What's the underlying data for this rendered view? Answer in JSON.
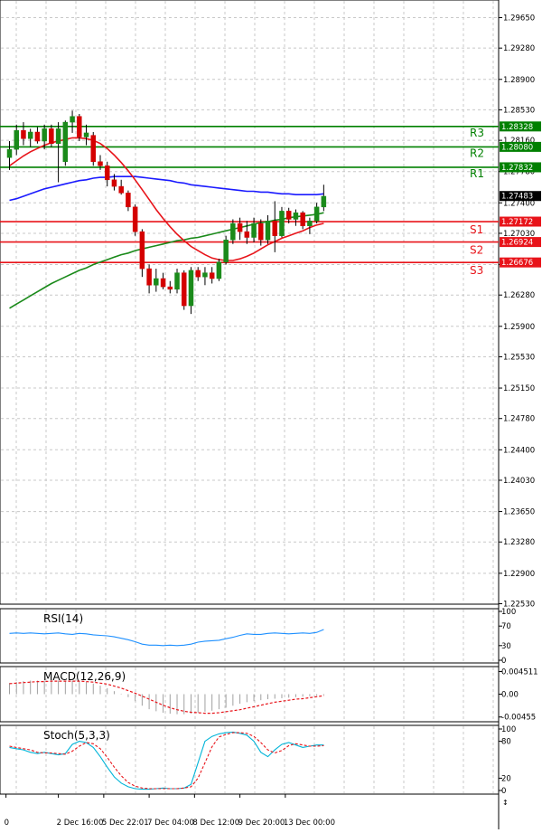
{
  "chart_data": [
    {
      "type": "candlestick",
      "title": "",
      "y_ticks": [
        "1.29650",
        "1.29280",
        "1.28900",
        "1.28530",
        "1.28160",
        "1.27780",
        "1.27400",
        "1.27030",
        "1.26650",
        "1.26280",
        "1.25900",
        "1.25530",
        "1.25150",
        "1.24780",
        "1.24400",
        "1.24030",
        "1.23650",
        "1.23280",
        "1.22900",
        "1.22530"
      ],
      "ylim": [
        1.2245,
        1.2985
      ],
      "current_price": {
        "label": "1.27483",
        "value": 1.27483
      },
      "pivot_levels": [
        {
          "name": "R3",
          "value": 1.28328,
          "label": "1.28328",
          "color": "#008000"
        },
        {
          "name": "R2",
          "value": 1.2808,
          "label": "1.28080",
          "color": "#008000"
        },
        {
          "name": "R1",
          "value": 1.27832,
          "label": "1.27832",
          "color": "#008000"
        },
        {
          "name": "S1",
          "value": 1.27172,
          "label": "1.27172",
          "color": "#e8141a"
        },
        {
          "name": "S2",
          "value": 1.26924,
          "label": "1.26924",
          "color": "#e8141a"
        },
        {
          "name": "S3",
          "value": 1.26676,
          "label": "1.26676",
          "color": "#e8141a"
        }
      ],
      "ohlc": [
        [
          1.2795,
          1.2815,
          1.278,
          1.2805
        ],
        [
          1.2805,
          1.2835,
          1.2798,
          1.2828
        ],
        [
          1.2828,
          1.2838,
          1.281,
          1.2818
        ],
        [
          1.2818,
          1.283,
          1.2808,
          1.2826
        ],
        [
          1.2826,
          1.2832,
          1.2812,
          1.2815
        ],
        [
          1.2815,
          1.2835,
          1.2805,
          1.283
        ],
        [
          1.283,
          1.2835,
          1.2808,
          1.2812
        ],
        [
          1.2812,
          1.2838,
          1.2765,
          1.283
        ],
        [
          1.279,
          1.284,
          1.2785,
          1.2838
        ],
        [
          1.2838,
          1.2852,
          1.2825,
          1.2845
        ],
        [
          1.2845,
          1.2848,
          1.2815,
          1.282
        ],
        [
          1.282,
          1.2835,
          1.281,
          1.2825
        ],
        [
          1.2822,
          1.2826,
          1.2785,
          1.279
        ],
        [
          1.279,
          1.2798,
          1.278,
          1.2785
        ],
        [
          1.2785,
          1.279,
          1.276,
          1.2768
        ],
        [
          1.2768,
          1.2775,
          1.2755,
          1.276
        ],
        [
          1.276,
          1.2768,
          1.275,
          1.2752
        ],
        [
          1.2752,
          1.2755,
          1.273,
          1.2735
        ],
        [
          1.2735,
          1.2738,
          1.27,
          1.2705
        ],
        [
          1.2705,
          1.2708,
          1.265,
          1.266
        ],
        [
          1.266,
          1.2665,
          1.263,
          1.264
        ],
        [
          1.264,
          1.266,
          1.2632,
          1.2648
        ],
        [
          1.2648,
          1.2655,
          1.2635,
          1.2638
        ],
        [
          1.2638,
          1.2645,
          1.263,
          1.2635
        ],
        [
          1.2635,
          1.266,
          1.263,
          1.2655
        ],
        [
          1.2655,
          1.2658,
          1.261,
          1.2615
        ],
        [
          1.2615,
          1.2662,
          1.2605,
          1.2658
        ],
        [
          1.2658,
          1.2662,
          1.2645,
          1.265
        ],
        [
          1.265,
          1.2662,
          1.264,
          1.2655
        ],
        [
          1.2655,
          1.2662,
          1.2642,
          1.2648
        ],
        [
          1.2648,
          1.2672,
          1.2645,
          1.2668
        ],
        [
          1.2668,
          1.27,
          1.2665,
          1.2695
        ],
        [
          1.2695,
          1.272,
          1.269,
          1.2715
        ],
        [
          1.2715,
          1.2722,
          1.2695,
          1.2705
        ],
        [
          1.2705,
          1.2718,
          1.269,
          1.2698
        ],
        [
          1.2698,
          1.2722,
          1.2692,
          1.2715
        ],
        [
          1.2715,
          1.272,
          1.2688,
          1.2695
        ],
        [
          1.2695,
          1.2725,
          1.269,
          1.2718
        ],
        [
          1.2718,
          1.2742,
          1.268,
          1.27
        ],
        [
          1.27,
          1.2735,
          1.2698,
          1.273
        ],
        [
          1.273,
          1.2734,
          1.2715,
          1.272
        ],
        [
          1.272,
          1.2732,
          1.2712,
          1.2728
        ],
        [
          1.2728,
          1.273,
          1.2708,
          1.2712
        ],
        [
          1.2712,
          1.2722,
          1.2702,
          1.2718
        ],
        [
          1.2718,
          1.274,
          1.2715,
          1.2735
        ],
        [
          1.2735,
          1.2762,
          1.273,
          1.2748
        ]
      ],
      "ma_slow": [
        1.2743,
        1.2745,
        1.2748,
        1.2751,
        1.2754,
        1.2757,
        1.2759,
        1.2761,
        1.2763,
        1.2765,
        1.2767,
        1.2768,
        1.277,
        1.2771,
        1.2771,
        1.2772,
        1.2772,
        1.2772,
        1.2772,
        1.2771,
        1.277,
        1.2769,
        1.2768,
        1.2767,
        1.2765,
        1.2764,
        1.2762,
        1.2761,
        1.276,
        1.2759,
        1.2758,
        1.2757,
        1.2756,
        1.2755,
        1.2754,
        1.2754,
        1.2753,
        1.2753,
        1.2752,
        1.2751,
        1.2751,
        1.275,
        1.275,
        1.275,
        1.275,
        1.2751
      ],
      "ma_mid": [
        1.2612,
        1.2617,
        1.2622,
        1.2627,
        1.2632,
        1.2637,
        1.2642,
        1.2646,
        1.265,
        1.2654,
        1.2658,
        1.2661,
        1.2665,
        1.2668,
        1.2671,
        1.2674,
        1.2677,
        1.2679,
        1.2682,
        1.2684,
        1.2686,
        1.2688,
        1.269,
        1.2692,
        1.2694,
        1.2695,
        1.2697,
        1.2698,
        1.27,
        1.2702,
        1.2704,
        1.2706,
        1.2708,
        1.271,
        1.2712,
        1.2714,
        1.2716,
        1.2717,
        1.2719,
        1.272,
        1.2722,
        1.2723,
        1.2724,
        1.2725,
        1.2726,
        1.2728
      ],
      "ma_fast": [
        1.2785,
        1.2791,
        1.2797,
        1.2802,
        1.2806,
        1.281,
        1.2813,
        1.2815,
        1.2817,
        1.2819,
        1.2819,
        1.2818,
        1.2816,
        1.2812,
        1.2806,
        1.2798,
        1.2789,
        1.2779,
        1.2768,
        1.2756,
        1.2744,
        1.2732,
        1.2721,
        1.2711,
        1.2702,
        1.2694,
        1.2687,
        1.2682,
        1.2677,
        1.2673,
        1.2671,
        1.267,
        1.267,
        1.2672,
        1.2675,
        1.2679,
        1.2684,
        1.2689,
        1.2693,
        1.2697,
        1.27,
        1.2703,
        1.2706,
        1.271,
        1.2713,
        1.2715
      ],
      "x_tick_labels": [
        "0",
        "2 Dec 16:00",
        "5 Dec 22:01",
        "7 Dec 04:00",
        "8 Dec 12:00",
        "9 Dec 20:00",
        "13 Dec 00:00"
      ],
      "x_tick_index": [
        -0.5,
        7,
        13.5,
        20,
        26.5,
        33,
        39.5
      ]
    },
    {
      "type": "line",
      "title": "RSI(14)",
      "ylim": [
        0,
        100
      ],
      "y_ticks": [
        "100",
        "70",
        "30",
        "0"
      ],
      "y_tick_values": [
        100,
        70,
        30,
        0
      ],
      "values": [
        55,
        56,
        55,
        56,
        55,
        54,
        55,
        56,
        54,
        53,
        55,
        54,
        52,
        51,
        50,
        48,
        45,
        42,
        38,
        33,
        31,
        31,
        30,
        31,
        30,
        31,
        33,
        37,
        39,
        40,
        41,
        44,
        47,
        51,
        54,
        53,
        53,
        55,
        56,
        55,
        54,
        55,
        56,
        55,
        57,
        63
      ]
    },
    {
      "type": "bar",
      "title": "MACD(12,26,9)",
      "ylim": [
        -0.0055,
        0.0055
      ],
      "y_ticks": [
        "0.004511",
        "0.00",
        "-0.00455"
      ],
      "y_tick_values": [
        0.004511,
        0,
        -0.00455
      ],
      "histogram": [
        0.0022,
        0.0024,
        0.0026,
        0.0027,
        0.0027,
        0.0027,
        0.0028,
        0.0027,
        0.0027,
        0.0026,
        0.0025,
        0.0024,
        0.0021,
        0.0017,
        0.0012,
        0.0006,
        0.0001,
        -0.0006,
        -0.0014,
        -0.0023,
        -0.003,
        -0.0034,
        -0.0037,
        -0.0039,
        -0.004,
        -0.004,
        -0.0039,
        -0.0037,
        -0.0035,
        -0.0033,
        -0.003,
        -0.0027,
        -0.0023,
        -0.0019,
        -0.0016,
        -0.0014,
        -0.0012,
        -0.001,
        -0.0009,
        -0.0008,
        -0.0007,
        -0.0006,
        -0.0005,
        -0.0004,
        -0.0003,
        -0.0002
      ],
      "signal": [
        0.0021,
        0.0022,
        0.0023,
        0.0024,
        0.0025,
        0.0025,
        0.0026,
        0.0026,
        0.0026,
        0.0026,
        0.0026,
        0.0025,
        0.0024,
        0.0022,
        0.002,
        0.0016,
        0.0012,
        0.0007,
        0.0002,
        -0.0004,
        -0.001,
        -0.0016,
        -0.0022,
        -0.0027,
        -0.0031,
        -0.0034,
        -0.0036,
        -0.0037,
        -0.0038,
        -0.0038,
        -0.0037,
        -0.0035,
        -0.0033,
        -0.0031,
        -0.0028,
        -0.0025,
        -0.0022,
        -0.0019,
        -0.0016,
        -0.0014,
        -0.0012,
        -0.001,
        -0.0009,
        -0.0007,
        -0.0005,
        -0.0003
      ]
    },
    {
      "type": "line",
      "title": "Stoch(5,3,3)",
      "ylim": [
        0,
        100
      ],
      "y_ticks": [
        "100",
        "80",
        "20",
        "0"
      ],
      "y_tick_values": [
        100,
        80,
        20,
        0
      ],
      "k": [
        70,
        68,
        66,
        62,
        60,
        62,
        60,
        58,
        60,
        75,
        80,
        78,
        70,
        55,
        38,
        22,
        12,
        6,
        3,
        2,
        2,
        3,
        4,
        3,
        3,
        4,
        10,
        45,
        80,
        88,
        92,
        94,
        95,
        93,
        90,
        80,
        62,
        55,
        66,
        75,
        78,
        74,
        70,
        72,
        74,
        74
      ],
      "d": [
        72,
        70,
        68,
        66,
        62,
        61,
        61,
        60,
        59,
        64,
        72,
        78,
        76,
        68,
        54,
        38,
        24,
        13,
        7,
        4,
        3,
        3,
        3,
        3,
        3,
        4,
        6,
        20,
        45,
        71,
        87,
        91,
        94,
        94,
        93,
        88,
        78,
        66,
        61,
        65,
        73,
        76,
        74,
        72,
        72,
        73
      ]
    }
  ]
}
